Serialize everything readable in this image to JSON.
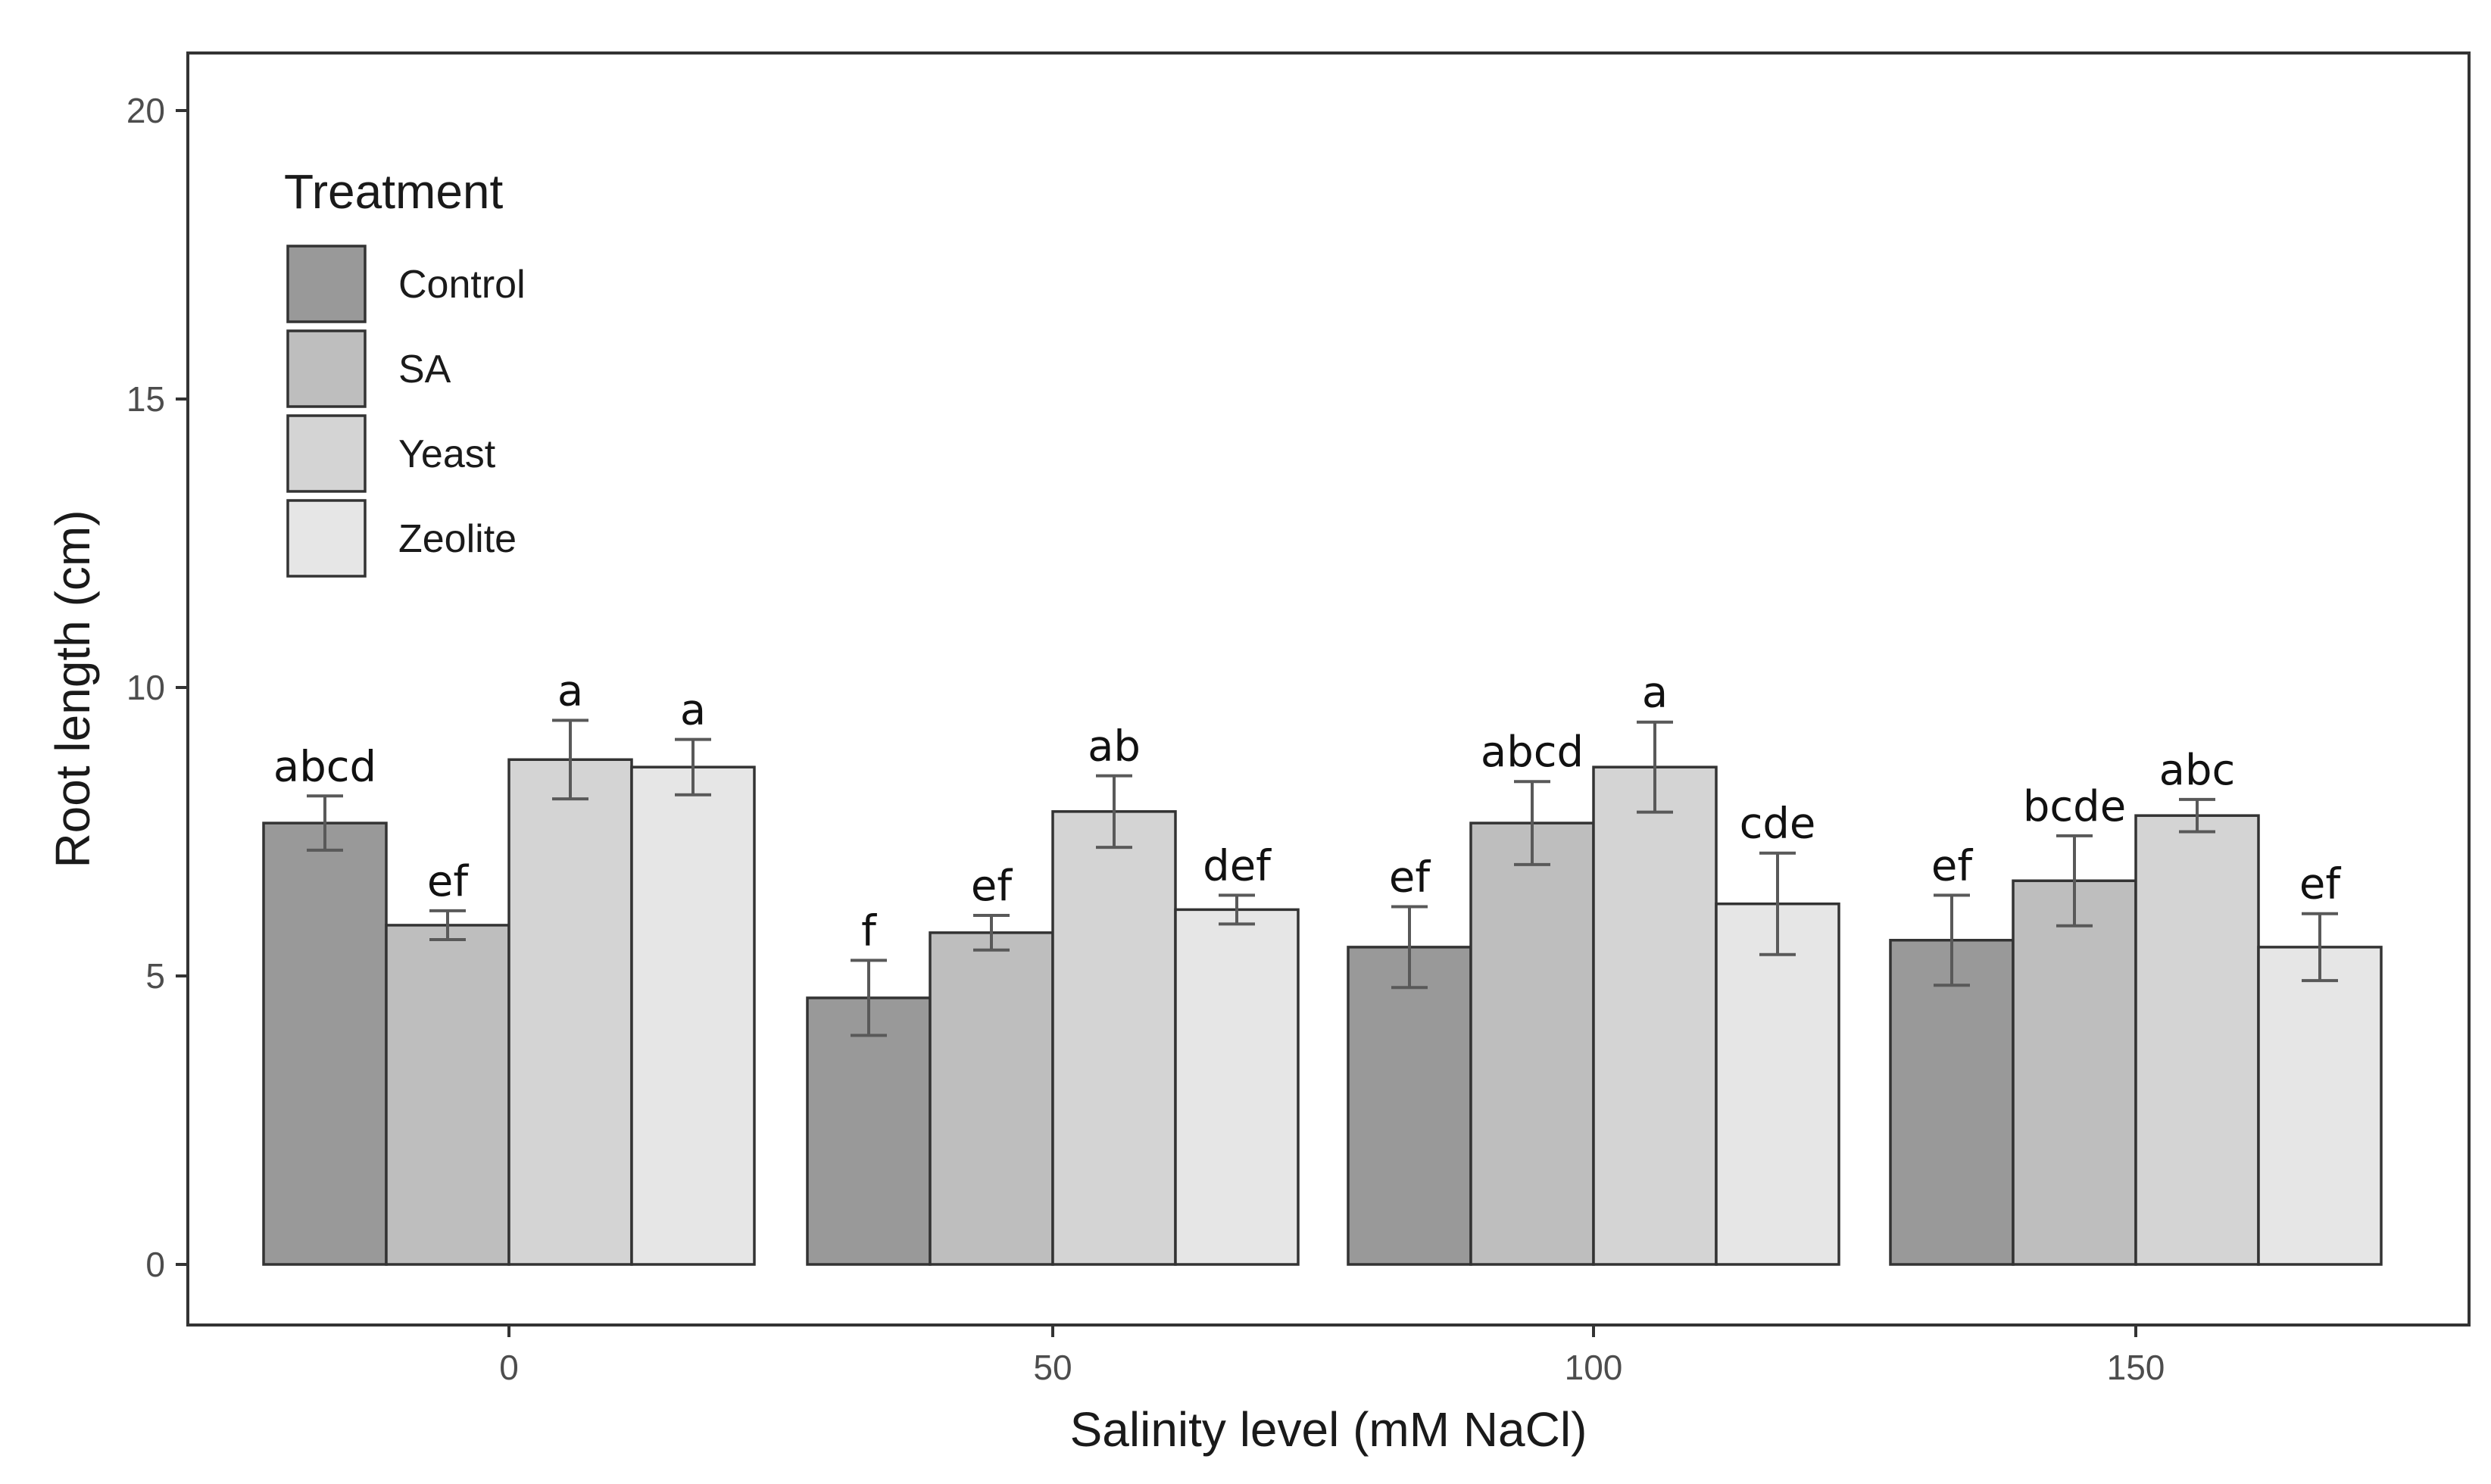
{
  "chart_data": {
    "type": "bar",
    "title": "",
    "xlabel": "Salinity level (mM NaCl)",
    "ylabel": "Root length (cm)",
    "ylim": [
      -1,
      21
    ],
    "yticks": [
      0,
      5,
      10,
      15,
      20
    ],
    "categories": [
      "0",
      "50",
      "100",
      "150"
    ],
    "legend": {
      "title": "Treatment",
      "position": "top-left"
    },
    "grid": false,
    "series": [
      {
        "name": "Control",
        "color": "#999999",
        "values": [
          7.65,
          4.62,
          5.5,
          5.62
        ],
        "errors": [
          0.47,
          0.65,
          0.7,
          0.78
        ],
        "letters": [
          "abcd",
          "f",
          "ef",
          "ef"
        ]
      },
      {
        "name": "SA",
        "color": "#bebebe",
        "values": [
          5.88,
          5.75,
          7.65,
          6.65
        ],
        "errors": [
          0.25,
          0.3,
          0.72,
          0.78
        ],
        "letters": [
          "ef",
          "ef",
          "abcd",
          "bcde"
        ]
      },
      {
        "name": "Yeast",
        "color": "#d4d4d4",
        "values": [
          8.75,
          7.85,
          8.62,
          7.78
        ],
        "errors": [
          0.68,
          0.62,
          0.78,
          0.28
        ],
        "letters": [
          "a",
          "ab",
          "a",
          "abc"
        ]
      },
      {
        "name": "Zeolite",
        "color": "#e6e6e6",
        "values": [
          8.62,
          6.15,
          6.25,
          5.5
        ],
        "errors": [
          0.48,
          0.25,
          0.88,
          0.58
        ],
        "letters": [
          "a",
          "def",
          "cde",
          "ef"
        ]
      }
    ]
  }
}
